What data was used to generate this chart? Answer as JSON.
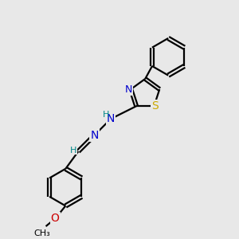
{
  "background_color": "#e8e8e8",
  "bond_color": "#000000",
  "bond_width": 1.6,
  "atom_colors": {
    "N": "#0000cc",
    "S": "#ccaa00",
    "O": "#cc0000",
    "C": "#000000",
    "H": "#008888"
  },
  "font_size": 9,
  "fig_bg": "#e8e8e8",
  "xlim": [
    0,
    10
  ],
  "ylim": [
    0,
    10
  ]
}
